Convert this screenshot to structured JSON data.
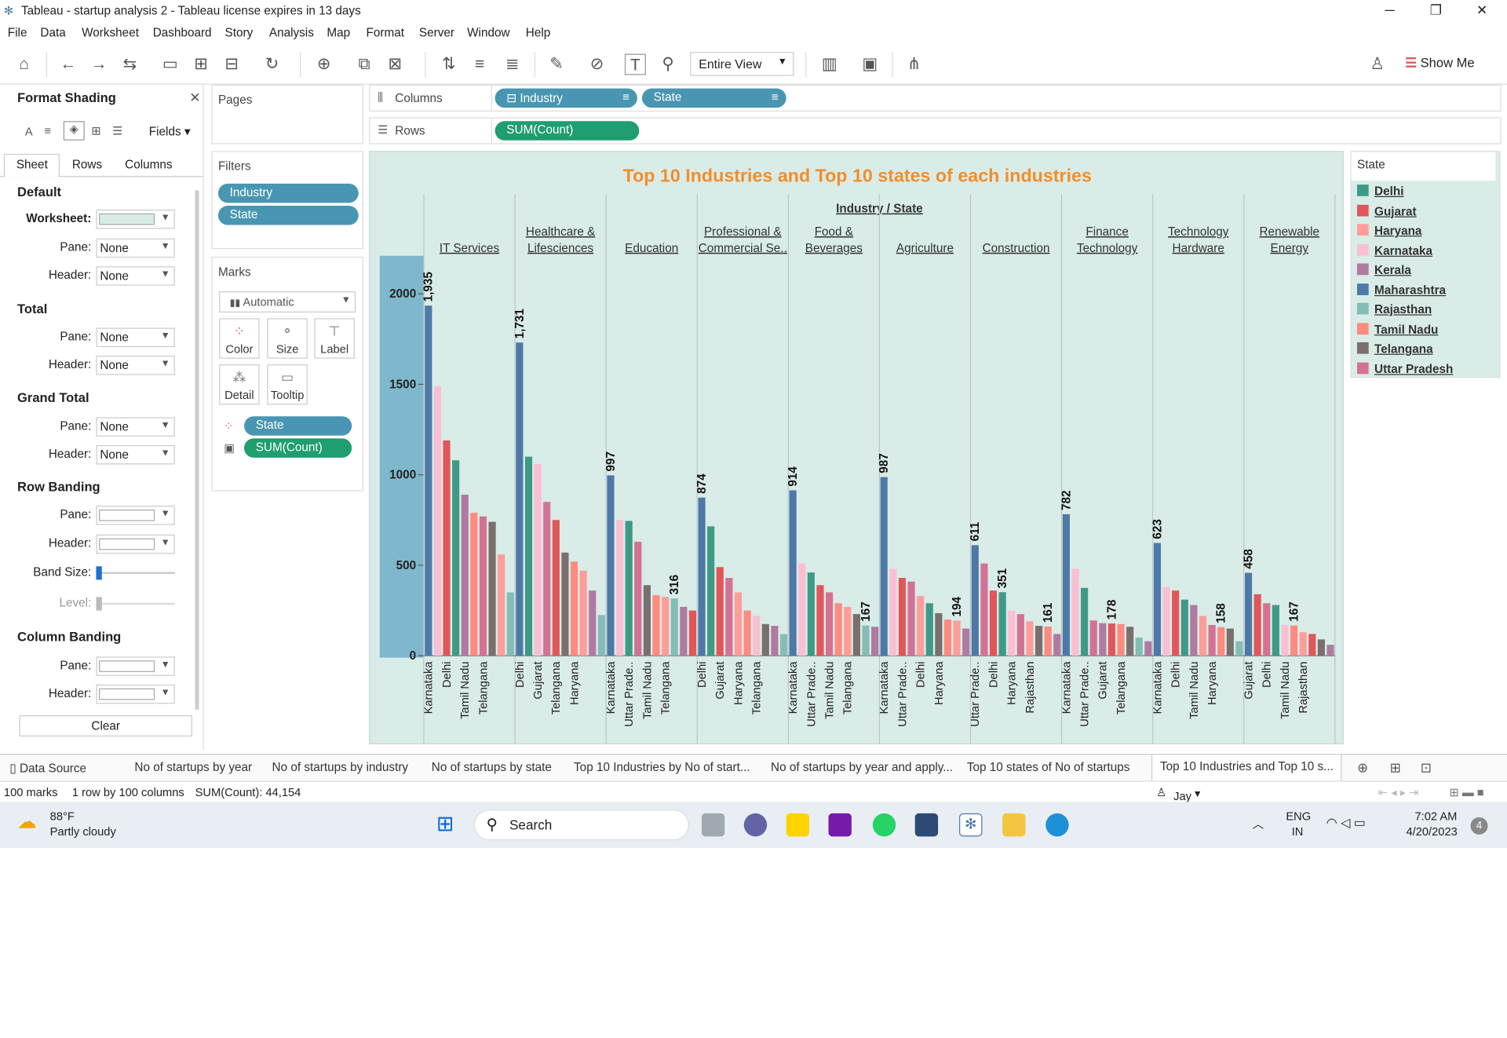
{
  "window": {
    "title": "Tableau - startup analysis 2 - Tableau license expires in 13 days"
  },
  "menu": [
    "File",
    "Data",
    "Worksheet",
    "Dashboard",
    "Story",
    "Analysis",
    "Map",
    "Format",
    "Server",
    "Window",
    "Help"
  ],
  "toolbar": {
    "view_mode": "Entire View",
    "show_me": "Show Me"
  },
  "format_panel": {
    "title": "Format Shading",
    "fields_label": "Fields",
    "tabs": [
      "Sheet",
      "Rows",
      "Columns"
    ],
    "sections": {
      "default": "Default",
      "worksheet": "Worksheet:",
      "pane": "Pane:",
      "header": "Header:",
      "total": "Total",
      "grand_total": "Grand Total",
      "row_banding": "Row Banding",
      "band_size": "Band Size:",
      "level": "Level:",
      "column_banding": "Column Banding"
    },
    "none": "None",
    "clear": "Clear"
  },
  "pages": {
    "title": "Pages"
  },
  "filters": {
    "title": "Filters",
    "items": [
      "Industry",
      "State"
    ]
  },
  "marks": {
    "title": "Marks",
    "type": "Automatic",
    "buttons": [
      "Color",
      "Size",
      "Label",
      "Detail",
      "Tooltip"
    ],
    "fields": [
      "State",
      "SUM(Count)"
    ]
  },
  "shelves": {
    "columns_label": "Columns",
    "rows_label": "Rows",
    "columns": [
      "Industry",
      "State"
    ],
    "rows": [
      "SUM(Count)"
    ]
  },
  "legend": {
    "title": "State",
    "items": [
      {
        "name": "Delhi",
        "color": "#3e9a87"
      },
      {
        "name": "Gujarat",
        "color": "#e15759"
      },
      {
        "name": "Haryana",
        "color": "#ff9d9a"
      },
      {
        "name": "Karnataka",
        "color": "#fabfd2"
      },
      {
        "name": "Kerala",
        "color": "#b07aa1"
      },
      {
        "name": "Maharashtra",
        "color": "#4e79a7"
      },
      {
        "name": "Rajasthan",
        "color": "#86bcb6"
      },
      {
        "name": "Tamil Nadu",
        "color": "#ff8a80"
      },
      {
        "name": "Telangana",
        "color": "#79706e"
      },
      {
        "name": "Uttar Pradesh",
        "color": "#d37295"
      }
    ]
  },
  "chart_data": {
    "type": "bar",
    "title": "Top 10 Industries and Top 10 states of each industries",
    "header": "Industry / State",
    "ylim": [
      0,
      2200
    ],
    "yticks": [
      0,
      500,
      1000,
      1500,
      2000
    ],
    "groups": [
      {
        "industry": "IT Services",
        "bars": [
          {
            "s": "Maharashtra",
            "v": 1935,
            "l": "1,935"
          },
          {
            "s": "Karnataka",
            "v": 1490
          },
          {
            "s": "Gujarat",
            "v": 1190
          },
          {
            "s": "Delhi",
            "v": 1080
          },
          {
            "s": "Kerala",
            "v": 890
          },
          {
            "s": "Tamil Nadu",
            "v": 790
          },
          {
            "s": "Uttar Pradesh",
            "v": 770
          },
          {
            "s": "Telangana",
            "v": 740
          },
          {
            "s": "Haryana",
            "v": 560
          },
          {
            "s": "Rajasthan",
            "v": 350
          }
        ],
        "ticks": [
          "Karnataka",
          "Delhi",
          "Tamil Nadu",
          "Telangana"
        ]
      },
      {
        "industry": "Healthcare & Lifesciences",
        "bars": [
          {
            "s": "Maharashtra",
            "v": 1731,
            "l": "1,731"
          },
          {
            "s": "Delhi",
            "v": 1100
          },
          {
            "s": "Karnataka",
            "v": 1060
          },
          {
            "s": "Uttar Pradesh",
            "v": 850
          },
          {
            "s": "Gujarat",
            "v": 750
          },
          {
            "s": "Telangana",
            "v": 570
          },
          {
            "s": "Tamil Nadu",
            "v": 520
          },
          {
            "s": "Haryana",
            "v": 470
          },
          {
            "s": "Kerala",
            "v": 360
          },
          {
            "s": "Rajasthan",
            "v": 225
          }
        ],
        "ticks": [
          "Delhi",
          "Gujarat",
          "Telangana",
          "Haryana"
        ]
      },
      {
        "industry": "Education",
        "bars": [
          {
            "s": "Maharashtra",
            "v": 997,
            "l": "997"
          },
          {
            "s": "Karnataka",
            "v": 750
          },
          {
            "s": "Delhi",
            "v": 745
          },
          {
            "s": "Uttar Pradesh",
            "v": 630
          },
          {
            "s": "Telangana",
            "v": 390
          },
          {
            "s": "Tamil Nadu",
            "v": 335
          },
          {
            "s": "Haryana",
            "v": 325
          },
          {
            "s": "Rajasthan",
            "v": 316,
            "l": "316"
          },
          {
            "s": "Kerala",
            "v": 270
          },
          {
            "s": "Gujarat",
            "v": 250
          }
        ],
        "ticks": [
          "Karnataka",
          "Uttar Prade..",
          "Tamil Nadu",
          "Telangana"
        ]
      },
      {
        "industry": "Professional & Commercial Se..",
        "bars": [
          {
            "s": "Maharashtra",
            "v": 874,
            "l": "874"
          },
          {
            "s": "Delhi",
            "v": 715
          },
          {
            "s": "Gujarat",
            "v": 490
          },
          {
            "s": "Uttar Pradesh",
            "v": 430
          },
          {
            "s": "Haryana",
            "v": 350
          },
          {
            "s": "Tamil Nadu",
            "v": 250
          },
          {
            "s": "Karnataka",
            "v": 220
          },
          {
            "s": "Telangana",
            "v": 175
          },
          {
            "s": "Kerala",
            "v": 165
          },
          {
            "s": "Rajasthan",
            "v": 120
          }
        ],
        "ticks": [
          "Delhi",
          "Gujarat",
          "Haryana",
          "Telangana"
        ]
      },
      {
        "industry": "Food & Beverages",
        "bars": [
          {
            "s": "Maharashtra",
            "v": 914,
            "l": "914"
          },
          {
            "s": "Karnataka",
            "v": 510
          },
          {
            "s": "Delhi",
            "v": 460
          },
          {
            "s": "Gujarat",
            "v": 390
          },
          {
            "s": "Uttar Pradesh",
            "v": 350
          },
          {
            "s": "Tamil Nadu",
            "v": 290
          },
          {
            "s": "Haryana",
            "v": 270
          },
          {
            "s": "Telangana",
            "v": 230
          },
          {
            "s": "Rajasthan",
            "v": 167,
            "l": "167"
          },
          {
            "s": "Kerala",
            "v": 160
          }
        ],
        "ticks": [
          "Karnataka",
          "Uttar Prade..",
          "Tamil Nadu",
          "Telangana"
        ]
      },
      {
        "industry": "Agriculture",
        "bars": [
          {
            "s": "Maharashtra",
            "v": 987,
            "l": "987"
          },
          {
            "s": "Karnataka",
            "v": 480
          },
          {
            "s": "Gujarat",
            "v": 430
          },
          {
            "s": "Uttar Pradesh",
            "v": 410
          },
          {
            "s": "Haryana",
            "v": 330
          },
          {
            "s": "Delhi",
            "v": 290
          },
          {
            "s": "Telangana",
            "v": 235
          },
          {
            "s": "Tamil Nadu",
            "v": 200
          },
          {
            "s": "Haryana",
            "v": 194,
            "l": "194"
          },
          {
            "s": "Kerala",
            "v": 150
          }
        ],
        "ticks": [
          "Karnataka",
          "Uttar Prade..",
          "Delhi",
          "Haryana"
        ]
      },
      {
        "industry": "Construction",
        "bars": [
          {
            "s": "Maharashtra",
            "v": 611,
            "l": "611"
          },
          {
            "s": "Uttar Pradesh",
            "v": 510
          },
          {
            "s": "Gujarat",
            "v": 360
          },
          {
            "s": "Delhi",
            "v": 351,
            "l": "351"
          },
          {
            "s": "Karnataka",
            "v": 250
          },
          {
            "s": "Uttar Pradesh",
            "v": 230
          },
          {
            "s": "Haryana",
            "v": 190
          },
          {
            "s": "Telangana",
            "v": 165
          },
          {
            "s": "Tamil Nadu",
            "v": 161,
            "l": "161"
          },
          {
            "s": "Kerala",
            "v": 120
          }
        ],
        "ticks": [
          "Uttar Prade..",
          "Delhi",
          "Haryana",
          "Rajasthan"
        ]
      },
      {
        "industry": "Finance Technology",
        "bars": [
          {
            "s": "Maharashtra",
            "v": 782,
            "l": "782"
          },
          {
            "s": "Karnataka",
            "v": 480
          },
          {
            "s": "Delhi",
            "v": 375
          },
          {
            "s": "Uttar Pradesh",
            "v": 195
          },
          {
            "s": "Kerala",
            "v": 180
          },
          {
            "s": "Gujarat",
            "v": 178,
            "l": "178"
          },
          {
            "s": "Tamil Nadu",
            "v": 175
          },
          {
            "s": "Telangana",
            "v": 160
          },
          {
            "s": "Rajasthan",
            "v": 100
          },
          {
            "s": "Kerala",
            "v": 80
          }
        ],
        "ticks": [
          "Karnataka",
          "Uttar Prade..",
          "Gujarat",
          "Telangana"
        ]
      },
      {
        "industry": "Technology Hardware",
        "bars": [
          {
            "s": "Maharashtra",
            "v": 623,
            "l": "623"
          },
          {
            "s": "Karnataka",
            "v": 380
          },
          {
            "s": "Gujarat",
            "v": 360
          },
          {
            "s": "Delhi",
            "v": 310
          },
          {
            "s": "Kerala",
            "v": 280
          },
          {
            "s": "Haryana",
            "v": 220
          },
          {
            "s": "Uttar Pradesh",
            "v": 170
          },
          {
            "s": "Tamil Nadu",
            "v": 158,
            "l": "158"
          },
          {
            "s": "Telangana",
            "v": 150
          },
          {
            "s": "Rajasthan",
            "v": 80
          }
        ],
        "ticks": [
          "Karnataka",
          "Delhi",
          "Tamil Nadu",
          "Haryana"
        ]
      },
      {
        "industry": "Renewable Energy",
        "bars": [
          {
            "s": "Maharashtra",
            "v": 458,
            "l": "458"
          },
          {
            "s": "Gujarat",
            "v": 340
          },
          {
            "s": "Uttar Pradesh",
            "v": 290
          },
          {
            "s": "Delhi",
            "v": 280
          },
          {
            "s": "Karnataka",
            "v": 170
          },
          {
            "s": "Tamil Nadu",
            "v": 167,
            "l": "167"
          },
          {
            "s": "Haryana",
            "v": 130
          },
          {
            "s": "Gujarat",
            "v": 120
          },
          {
            "s": "Telangana",
            "v": 90
          },
          {
            "s": "Kerala",
            "v": 60
          }
        ],
        "ticks": [
          "Gujarat",
          "Delhi",
          "Tamil Nadu",
          "Rajasthan"
        ]
      }
    ]
  },
  "sheet_tabs": [
    "Data Source",
    "No of startups by year",
    "No of startups by industry",
    "No of startups by state",
    "Top 10 Industries  by No of start...",
    "No of startups by year and apply...",
    "Top 10 states of No of startups",
    "Top 10 Industries and Top 10 s..."
  ],
  "statusbar": {
    "marks": "100 marks",
    "dims": "1 row by 100 columns",
    "sum": "SUM(Count): 44,154",
    "user": "Jay Sooriyan"
  },
  "taskbar": {
    "weather_temp": "88°F",
    "weather_desc": "Partly cloudy",
    "search": "Search",
    "lang1": "ENG",
    "lang2": "IN",
    "time": "7:02 AM",
    "date": "4/20/2023",
    "badge": "4"
  }
}
